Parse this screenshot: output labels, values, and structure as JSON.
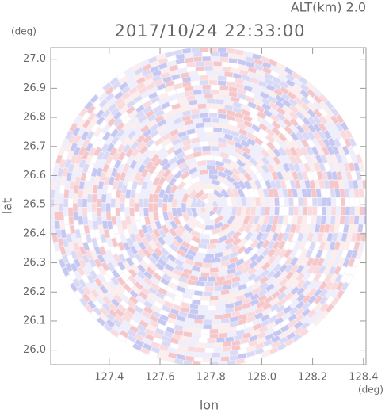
{
  "chart_data": {
    "type": "radar-field",
    "title": "2017/10/24 22:33:00",
    "subtitle": "ALT(km) 2.0",
    "x_label": "lon",
    "y_label": "lat",
    "x_unit": "(deg)",
    "y_unit": "(deg)",
    "xlim": [
      127.17,
      128.41
    ],
    "ylim": [
      25.95,
      27.04
    ],
    "xticks": [
      127.4,
      127.6,
      127.8,
      {
        "value": 128.0,
        "label": "128.0"
      },
      128.2,
      128.4
    ],
    "yticks": [
      {
        "value": 26.0,
        "label": "26.0"
      },
      26.1,
      26.2,
      26.3,
      26.4,
      26.5,
      26.6,
      26.7,
      26.8,
      26.9,
      {
        "value": 27.0,
        "label": "27.0"
      }
    ]
  }
}
